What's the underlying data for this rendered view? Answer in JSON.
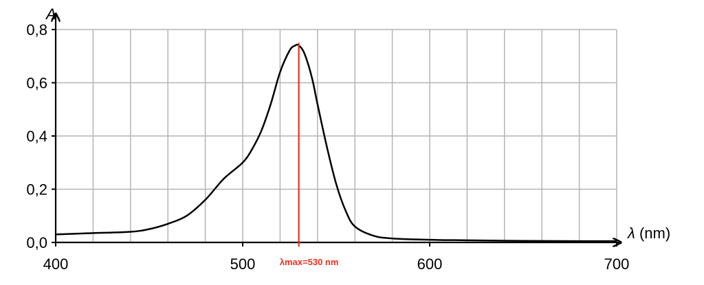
{
  "chart_data": {
    "type": "line",
    "title": "",
    "xlabel_symbol": "λ",
    "xlabel_unit": "(nm)",
    "ylabel": "A",
    "xlim": [
      400,
      700
    ],
    "ylim": [
      0,
      0.8
    ],
    "x_ticks": [
      400,
      500,
      600,
      700
    ],
    "x_tick_labels": [
      "400",
      "500",
      "600",
      "700"
    ],
    "y_ticks": [
      0,
      0.2,
      0.4,
      0.6,
      0.8
    ],
    "y_tick_labels": [
      "0,0",
      "0,2",
      "0,4",
      "0,6",
      "0,8"
    ],
    "x_grid_step": 20,
    "y_grid_step": 0.2,
    "grid": true,
    "colors": {
      "curve": "#000000",
      "marker": "#e8321e",
      "grid": "#b4b4b4",
      "axis": "#000000"
    },
    "annotation": {
      "label": "λmax=530 nm",
      "x": 530,
      "y_top": 0.75
    },
    "series": [
      {
        "x": [
          400,
          420,
          440,
          450,
          460,
          470,
          480,
          490,
          500,
          505,
          510,
          515,
          520,
          525,
          528,
          530,
          533,
          537,
          540,
          545,
          550,
          555,
          560,
          570,
          580,
          600,
          620,
          650,
          680,
          700
        ],
        "y": [
          0.03,
          0.035,
          0.04,
          0.05,
          0.07,
          0.1,
          0.16,
          0.24,
          0.3,
          0.35,
          0.42,
          0.52,
          0.64,
          0.72,
          0.74,
          0.74,
          0.71,
          0.62,
          0.52,
          0.36,
          0.22,
          0.12,
          0.06,
          0.025,
          0.015,
          0.01,
          0.008,
          0.006,
          0.005,
          0.005
        ]
      }
    ]
  }
}
